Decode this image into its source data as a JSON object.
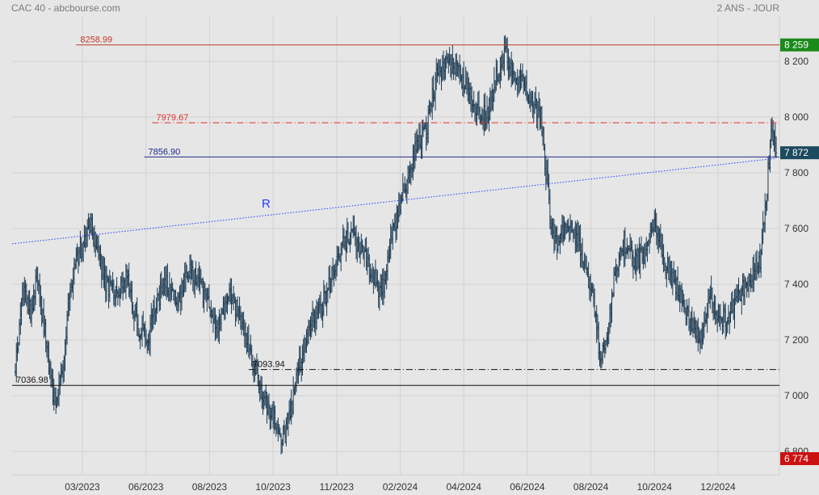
{
  "header": {
    "title": "CAC 40 - abcbourse.com",
    "period": "2 ANS - JOUR"
  },
  "colors": {
    "background": "#e6e6e6",
    "bars": "#1c3a52",
    "resistance_red": "#c0392b",
    "dashed_red": "#e0302a",
    "support_blue": "#1f2a8c",
    "trendline_blue": "#1e3cff",
    "support_black": "#111111",
    "badge_high": "#1a8a1a",
    "badge_last": "#1c4a5e",
    "badge_low": "#cc1111"
  },
  "chart_data": {
    "type": "ohlc",
    "title": "CAC 40 - abcbourse.com",
    "period": "2 ANS - JOUR",
    "x_tick_labels": [
      "03/2023",
      "06/2023",
      "08/2023",
      "10/2023",
      "11/2023",
      "02/2024",
      "04/2024",
      "06/2024",
      "08/2024",
      "10/2024",
      "12/2024"
    ],
    "y_ticks": [
      6800,
      7000,
      7200,
      7400,
      7600,
      7800,
      8000,
      8200
    ],
    "y_tick_labels": [
      "6 800",
      "7 000",
      "7 200",
      "7 400",
      "7 600",
      "7 800",
      "8 000",
      "8 200"
    ],
    "ylim": [
      6700,
      8320
    ],
    "grid": true,
    "series_path": [
      [
        0,
        7100
      ],
      [
        8,
        7380
      ],
      [
        15,
        7300
      ],
      [
        22,
        7420
      ],
      [
        30,
        7200
      ],
      [
        38,
        6980
      ],
      [
        45,
        7050
      ],
      [
        52,
        7320
      ],
      [
        60,
        7480
      ],
      [
        68,
        7560
      ],
      [
        75,
        7620
      ],
      [
        82,
        7500
      ],
      [
        90,
        7400
      ],
      [
        100,
        7350
      ],
      [
        110,
        7420
      ],
      [
        120,
        7250
      ],
      [
        130,
        7200
      ],
      [
        140,
        7350
      ],
      [
        150,
        7400
      ],
      [
        160,
        7330
      ],
      [
        170,
        7450
      ],
      [
        180,
        7420
      ],
      [
        190,
        7320
      ],
      [
        200,
        7250
      ],
      [
        210,
        7350
      ],
      [
        220,
        7300
      ],
      [
        230,
        7180
      ],
      [
        240,
        7050
      ],
      [
        250,
        6950
      ],
      [
        260,
        6870
      ],
      [
        265,
        6840
      ],
      [
        272,
        6950
      ],
      [
        280,
        7120
      ],
      [
        290,
        7250
      ],
      [
        300,
        7300
      ],
      [
        310,
        7400
      ],
      [
        320,
        7520
      ],
      [
        330,
        7580
      ],
      [
        340,
        7540
      ],
      [
        350,
        7450
      ],
      [
        360,
        7380
      ],
      [
        365,
        7420
      ],
      [
        370,
        7560
      ],
      [
        375,
        7630
      ],
      [
        380,
        7700
      ],
      [
        388,
        7800
      ],
      [
        395,
        7900
      ],
      [
        405,
        7950
      ],
      [
        415,
        8150
      ],
      [
        425,
        8200
      ],
      [
        435,
        8180
      ],
      [
        445,
        8100
      ],
      [
        455,
        8030
      ],
      [
        465,
        8000
      ],
      [
        475,
        8150
      ],
      [
        483,
        8230
      ],
      [
        490,
        8180
      ],
      [
        500,
        8120
      ],
      [
        510,
        8050
      ],
      [
        518,
        8000
      ],
      [
        522,
        7850
      ],
      [
        528,
        7600
      ],
      [
        535,
        7550
      ],
      [
        545,
        7620
      ],
      [
        555,
        7550
      ],
      [
        565,
        7430
      ],
      [
        572,
        7300
      ],
      [
        576,
        7120
      ],
      [
        582,
        7200
      ],
      [
        590,
        7400
      ],
      [
        600,
        7550
      ],
      [
        610,
        7480
      ],
      [
        620,
        7500
      ],
      [
        630,
        7620
      ],
      [
        640,
        7480
      ],
      [
        648,
        7420
      ],
      [
        656,
        7350
      ],
      [
        666,
        7250
      ],
      [
        676,
        7200
      ],
      [
        686,
        7350
      ],
      [
        696,
        7270
      ],
      [
        706,
        7300
      ],
      [
        716,
        7380
      ],
      [
        726,
        7420
      ],
      [
        734,
        7480
      ],
      [
        740,
        7700
      ],
      [
        745,
        7950
      ],
      [
        750,
        7872
      ]
    ],
    "series_path_units": {
      "x": "trading day index",
      "y": "index points"
    },
    "horizontal_levels": [
      {
        "value": 8258.99,
        "label": "8258.99",
        "style": "solid",
        "color": "#c0392b",
        "x_start": 60,
        "x_end": 750
      },
      {
        "value": 7979.67,
        "label": "7979.67",
        "style": "dash-dot",
        "color": "#e0302a",
        "x_start": 135,
        "x_end": 750
      },
      {
        "value": 7856.9,
        "label": "7856.90",
        "style": "solid",
        "color": "#1f2a8c",
        "x_start": 127,
        "x_end": 750
      },
      {
        "value": 7093.94,
        "label": "7093.94",
        "style": "dash-dot",
        "color": "#111111",
        "x_start": 230,
        "x_end": 750
      },
      {
        "value": 7036.98,
        "label": "7036.98",
        "style": "solid",
        "color": "#111111",
        "x_start": 0,
        "x_end": 750
      }
    ],
    "trendline": {
      "label": "R",
      "x1": 0,
      "y1": 7545,
      "x2": 750,
      "y2": 7852,
      "style": "dotted",
      "color": "#1e3cff"
    },
    "badges": [
      {
        "value": 8258.99,
        "text": "8 259",
        "color": "#1a8a1a"
      },
      {
        "value": 7872,
        "text": "7 872",
        "color": "#1c4a5e"
      },
      {
        "value": 6774,
        "text": "6 774",
        "color": "#cc1111"
      }
    ]
  }
}
